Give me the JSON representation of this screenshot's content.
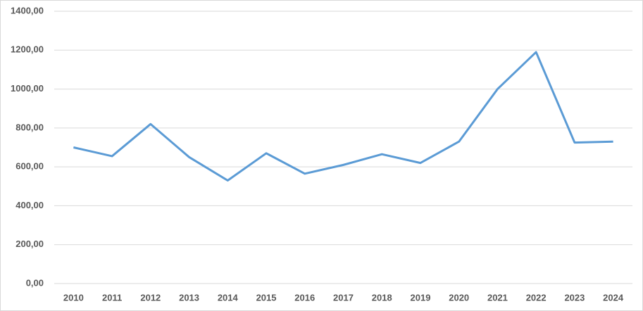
{
  "chart_data": {
    "type": "line",
    "categories": [
      "2010",
      "2011",
      "2012",
      "2013",
      "2014",
      "2015",
      "2016",
      "2017",
      "2018",
      "2019",
      "2020",
      "2021",
      "2022",
      "2023",
      "2024"
    ],
    "series": [
      {
        "color": "#5b9bd5",
        "values": [
          700,
          655,
          820,
          650,
          530,
          670,
          565,
          610,
          665,
          620,
          730,
          1000,
          1190,
          725,
          730
        ]
      }
    ],
    "ylim": [
      0,
      1400
    ],
    "yticks": [
      {
        "value": 0,
        "label": "0,00"
      },
      {
        "value": 200,
        "label": "200,00"
      },
      {
        "value": 400,
        "label": "400,00"
      },
      {
        "value": 600,
        "label": "600,00"
      },
      {
        "value": 800,
        "label": "800,00"
      },
      {
        "value": 1000,
        "label": "1000,00"
      },
      {
        "value": 1200,
        "label": "1200,00"
      },
      {
        "value": 1400,
        "label": "1400,00"
      }
    ],
    "grid": true
  }
}
